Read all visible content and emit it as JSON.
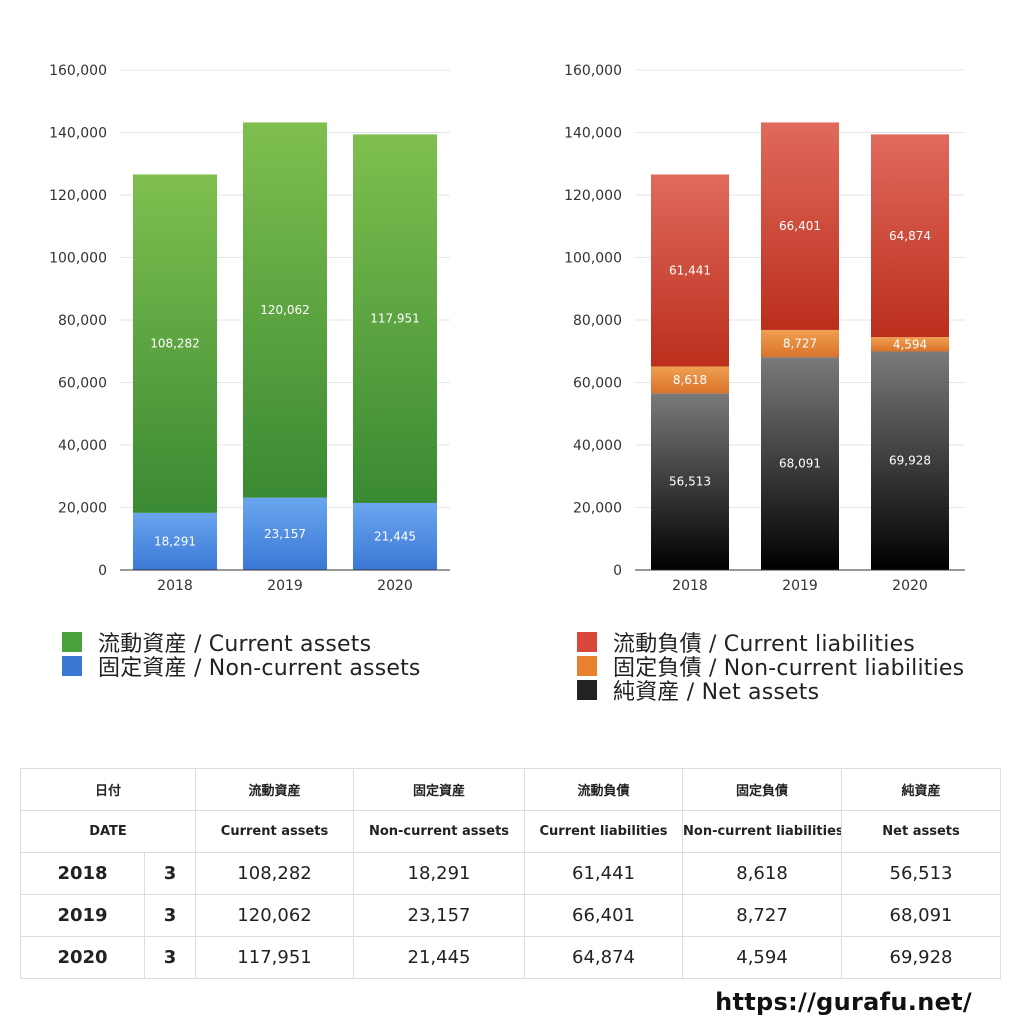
{
  "chart_data": [
    {
      "type": "bar",
      "stacked": true,
      "categories": [
        "2018",
        "2019",
        "2020"
      ],
      "ylim": [
        0,
        160000
      ],
      "yticks": [
        "0",
        "20,000",
        "40,000",
        "60,000",
        "80,000",
        "100,000",
        "120,000",
        "140,000",
        "160,000"
      ],
      "grid": true,
      "series": [
        {
          "name": "固定資産 / Non-current assets",
          "values": [
            18291,
            23157,
            21445
          ],
          "labels": [
            "18,291",
            "23,157",
            "21,445"
          ],
          "color": "#3a78d6",
          "color_top": "#6aa6ef"
        },
        {
          "name": "流動資産 / Current assets",
          "values": [
            108282,
            120062,
            117951
          ],
          "labels": [
            "108,282",
            "120,062",
            "117,951"
          ],
          "color": "#3a8a33",
          "color_top": "#7fbf4f"
        }
      ],
      "legend": [
        "流動資産 / Current assets",
        "固定資産 / Non-current assets"
      ],
      "legend_colors": [
        "#4aa23e",
        "#3a78d6"
      ],
      "legend_position": "bottom"
    },
    {
      "type": "bar",
      "stacked": true,
      "categories": [
        "2018",
        "2019",
        "2020"
      ],
      "ylim": [
        0,
        160000
      ],
      "yticks": [
        "0",
        "20,000",
        "40,000",
        "60,000",
        "80,000",
        "100,000",
        "120,000",
        "140,000",
        "160,000"
      ],
      "grid": true,
      "series": [
        {
          "name": "純資産 / Net assets",
          "values": [
            56513,
            68091,
            69928
          ],
          "labels": [
            "56,513",
            "68,091",
            "69,928"
          ],
          "color": "#000000",
          "color_top": "#7a7a7a"
        },
        {
          "name": "固定負債 / Non-current liabilities",
          "values": [
            8618,
            8727,
            4594
          ],
          "labels": [
            "8,618",
            "8,727",
            "4,594"
          ],
          "color": "#d9722a",
          "color_top": "#f0a050"
        },
        {
          "name": "流動負債 / Current liabilities",
          "values": [
            61441,
            66401,
            64874
          ],
          "labels": [
            "61,441",
            "66,401",
            "64,874"
          ],
          "color": "#bb2e1c",
          "color_top": "#e06a5c"
        }
      ],
      "legend": [
        "流動負債 / Current liabilities",
        "固定負債 / Non-current liabilities",
        "純資産 / Net assets"
      ],
      "legend_colors": [
        "#d9463a",
        "#e8822f",
        "#222222"
      ],
      "legend_position": "bottom"
    }
  ],
  "table": {
    "headers_jp": [
      "日付",
      "流動資産",
      "固定資産",
      "流動負債",
      "固定負債",
      "純資産"
    ],
    "headers_en": [
      "DATE",
      "Current assets",
      "Non-current assets",
      "Current liabilities",
      "Non-current liabilities",
      "Net assets"
    ],
    "rows": [
      {
        "year": "2018",
        "month": "3",
        "values": [
          "108,282",
          "18,291",
          "61,441",
          "8,618",
          "56,513"
        ]
      },
      {
        "year": "2019",
        "month": "3",
        "values": [
          "120,062",
          "23,157",
          "66,401",
          "8,727",
          "68,091"
        ]
      },
      {
        "year": "2020",
        "month": "3",
        "values": [
          "117,951",
          "21,445",
          "64,874",
          "4,594",
          "69,928"
        ]
      }
    ]
  },
  "footer": {
    "url": "https://gurafu.net/"
  }
}
